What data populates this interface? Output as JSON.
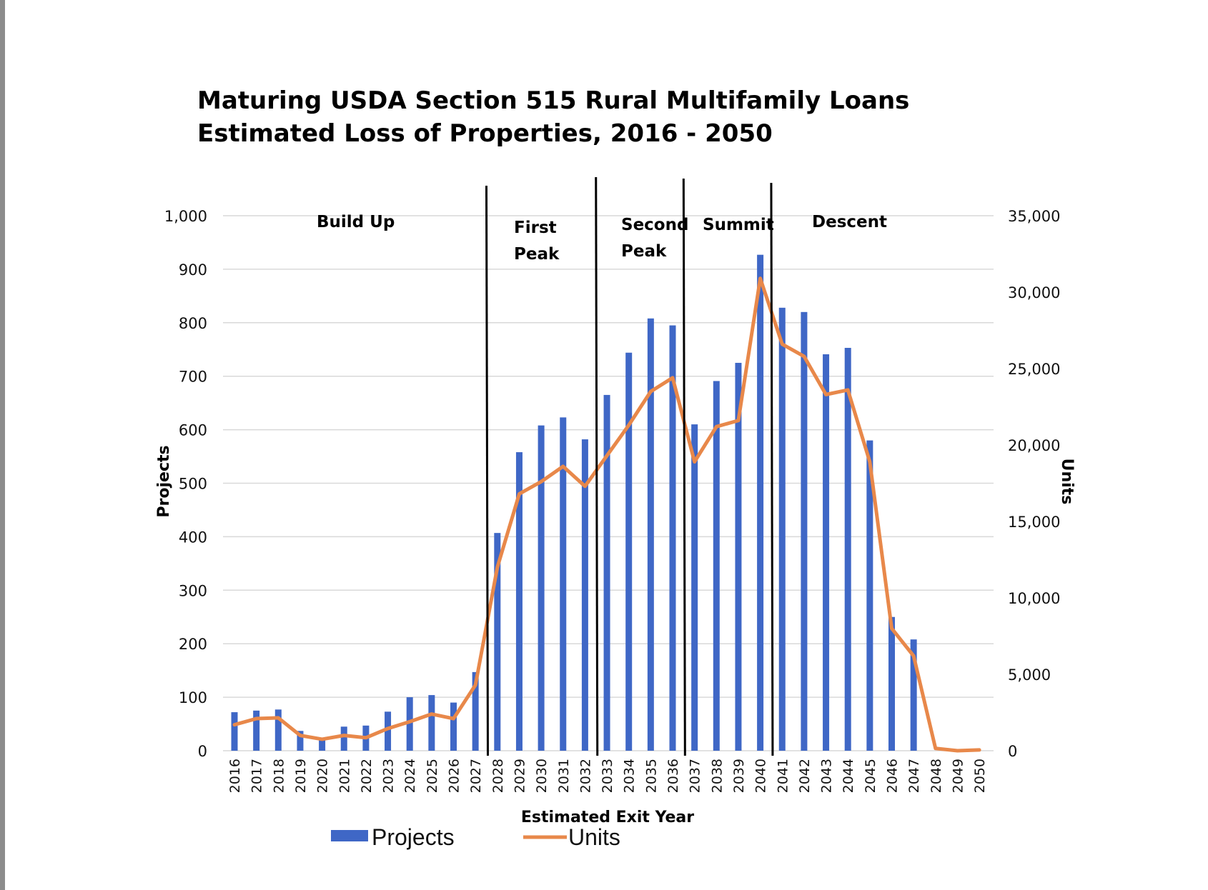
{
  "chart_data": {
    "type": "bar",
    "title": "Maturing USDA Section 515 Rural Multifamily Loans",
    "subtitle": "Estimated Loss of Properties, 2016 - 2050",
    "xlabel": "Estimated Exit Year",
    "ylabel": "Projects",
    "y2label": "Units",
    "ylim": [
      0,
      1000
    ],
    "y2lim": [
      0,
      35000
    ],
    "y_ticks": [
      "0",
      "100",
      "200",
      "300",
      "400",
      "500",
      "600",
      "700",
      "800",
      "900",
      "1,000"
    ],
    "y2_ticks": [
      "0",
      "5,000",
      "10,000",
      "15,000",
      "20,000",
      "25,000",
      "30,000",
      "35,000"
    ],
    "grid": true,
    "legend_position": "bottom",
    "categories": [
      "2016",
      "2017",
      "2018",
      "2019",
      "2020",
      "2021",
      "2022",
      "2023",
      "2024",
      "2025",
      "2026",
      "2027",
      "2028",
      "2029",
      "2030",
      "2031",
      "2032",
      "2033",
      "2034",
      "2035",
      "2036",
      "2037",
      "2038",
      "2039",
      "2040",
      "2041",
      "2042",
      "2043",
      "2044",
      "2045",
      "2046",
      "2047",
      "2048",
      "2049",
      "2050"
    ],
    "series": [
      {
        "name": "Projects",
        "type": "bar",
        "axis": "left",
        "color": "#3f67c6",
        "values": [
          72,
          75,
          77,
          37,
          22,
          45,
          47,
          73,
          100,
          104,
          90,
          147,
          407,
          558,
          608,
          623,
          582,
          665,
          744,
          808,
          795,
          610,
          691,
          725,
          927,
          828,
          820,
          741,
          753,
          580,
          250,
          208,
          0,
          0,
          0
        ]
      },
      {
        "name": "Units",
        "type": "line",
        "axis": "right",
        "color": "#e8884a",
        "values": [
          1700,
          2100,
          2150,
          1000,
          750,
          1000,
          850,
          1450,
          1900,
          2400,
          2100,
          4300,
          12000,
          16800,
          17600,
          18600,
          17300,
          19300,
          21300,
          23500,
          24400,
          18900,
          21200,
          21600,
          30900,
          26600,
          25800,
          23300,
          23600,
          18900,
          8000,
          6200,
          150,
          0,
          50
        ]
      }
    ],
    "annotations": [
      {
        "lines": [
          "Build Up"
        ]
      },
      {
        "lines": [
          "First",
          "Peak"
        ]
      },
      {
        "lines": [
          "Second",
          "Peak"
        ]
      },
      {
        "lines": [
          "Summit"
        ]
      },
      {
        "lines": [
          "Descent"
        ]
      }
    ],
    "dividers_between_years": [
      [
        "2027",
        "2028"
      ],
      [
        "2032",
        "2033"
      ],
      [
        "2036",
        "2037"
      ],
      [
        "2040",
        "2041"
      ]
    ]
  }
}
